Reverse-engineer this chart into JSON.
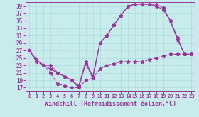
{
  "xlabel": "Windchill (Refroidissement éolien,°C)",
  "xlim": [
    -0.5,
    23.5
  ],
  "ylim": [
    16,
    40
  ],
  "xticks": [
    0,
    1,
    2,
    3,
    4,
    5,
    6,
    7,
    8,
    9,
    10,
    11,
    12,
    13,
    14,
    15,
    16,
    17,
    18,
    19,
    20,
    21,
    22,
    23
  ],
  "yticks": [
    17,
    19,
    21,
    23,
    25,
    27,
    29,
    31,
    33,
    35,
    37,
    39
  ],
  "bg_color": "#c8ecec",
  "line_color": "#993399",
  "grid_color": "#aadddd",
  "line1_x": [
    0,
    1,
    2,
    3,
    4,
    5,
    6,
    7,
    8,
    9,
    10,
    11,
    12,
    13,
    14,
    15,
    16,
    17,
    18,
    19,
    20,
    21,
    22,
    23
  ],
  "line1_y": [
    27,
    24.5,
    23,
    23,
    21,
    20,
    19,
    17.5,
    24,
    20,
    29,
    31,
    34,
    36.5,
    39,
    39.5,
    39.5,
    39.5,
    39.5,
    38.5,
    35,
    30.5,
    26,
    26
  ],
  "line2_x": [
    0,
    1,
    2,
    3,
    4,
    5,
    6,
    7,
    8,
    9,
    10,
    11,
    12,
    13,
    14,
    15,
    16,
    17,
    18,
    19,
    20,
    21,
    22,
    23
  ],
  "line2_y": [
    27,
    24.5,
    23,
    22,
    21,
    20,
    19,
    17,
    23.5,
    19.5,
    29,
    31,
    34,
    36.5,
    39,
    39.5,
    39.5,
    39.5,
    39,
    38,
    35,
    30,
    26,
    26
  ],
  "line3_x": [
    0,
    1,
    2,
    3,
    4,
    5,
    6,
    7,
    8,
    9,
    10,
    11,
    12,
    13,
    14,
    15,
    16,
    17,
    18,
    19,
    20,
    21,
    22,
    23
  ],
  "line3_y": [
    27,
    24,
    23,
    21,
    18,
    17.5,
    17,
    17,
    19,
    19.5,
    22,
    23,
    23.5,
    24,
    24,
    24,
    24,
    24.5,
    25,
    25.5,
    26,
    26,
    26,
    26
  ]
}
